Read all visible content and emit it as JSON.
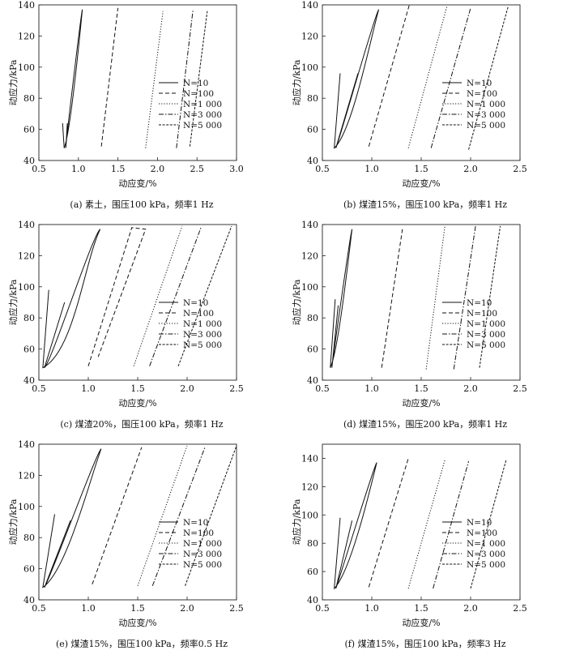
{
  "chart_data": [
    {
      "type": "line",
      "caption": "(a) 素土，围压100 kPa，频率1 Hz",
      "xlabel": "动应变/%",
      "ylabel": "动应力/kPa",
      "xlim": [
        0.5,
        3.0
      ],
      "ylim": [
        40,
        140
      ],
      "xticks": [
        0.5,
        1.0,
        1.5,
        2.0,
        2.5,
        3.0
      ],
      "xtick_labels": [
        "0.5",
        "1.0",
        "1.5",
        "2.0",
        "2.5",
        "3.0"
      ],
      "yticks": [
        40,
        60,
        80,
        100,
        120,
        140
      ],
      "ytick_labels": [
        "40",
        "60",
        "80",
        "100",
        "120",
        "140"
      ],
      "legend_position": "center-right",
      "series": [
        {
          "name": "N=10",
          "style": "solid",
          "hysteresis": {
            "s_min": 0.82,
            "s_max": 1.05,
            "bulge": 0.04,
            "start": [
              0.8,
              64
            ],
            "end": [
              0.86,
              64
            ]
          }
        },
        {
          "name": "N=100",
          "style": "dashed",
          "points": [
            [
              1.29,
              49
            ],
            [
              1.5,
              138
            ]
          ]
        },
        {
          "name": "N=1 000",
          "style": "dotted",
          "points": [
            [
              1.85,
              48
            ],
            [
              2.07,
              136
            ]
          ]
        },
        {
          "name": "N=3 000",
          "style": "dashdot",
          "points": [
            [
              2.24,
              48
            ],
            [
              2.45,
              137
            ]
          ]
        },
        {
          "name": "N=5 000",
          "style": "longdash",
          "points": [
            [
              2.41,
              49
            ],
            [
              2.63,
              136
            ]
          ]
        }
      ]
    },
    {
      "type": "line",
      "caption": "(b) 煤渣15%，围压100 kPa，频率1 Hz",
      "xlabel": "动应变/%",
      "ylabel": "动应力/kPa",
      "xlim": [
        0.5,
        2.5
      ],
      "ylim": [
        40,
        140
      ],
      "xticks": [
        0.5,
        1.0,
        1.5,
        2.0,
        2.5
      ],
      "xtick_labels": [
        "0.5",
        "1.0",
        "1.5",
        "2.0",
        "2.5"
      ],
      "yticks": [
        40,
        60,
        80,
        100,
        120,
        140
      ],
      "ytick_labels": [
        "40",
        "60",
        "80",
        "100",
        "120",
        "140"
      ],
      "legend_position": "center-right",
      "series": [
        {
          "name": "N=10",
          "style": "solid",
          "hysteresis": {
            "s_min": 0.62,
            "s_max": 1.07,
            "bulge": 0.09,
            "start": [
              0.68,
              96
            ],
            "end": [
              0.86,
              96
            ]
          }
        },
        {
          "name": "N=100",
          "style": "dashed",
          "points": [
            [
              0.97,
              49
            ],
            [
              1.38,
              140
            ]
          ]
        },
        {
          "name": "N=1 000",
          "style": "dotted",
          "points": [
            [
              1.37,
              48
            ],
            [
              1.76,
              139
            ]
          ]
        },
        {
          "name": "N=3 000",
          "style": "dashdot",
          "points": [
            [
              1.6,
              48
            ],
            [
              2.0,
              138
            ]
          ]
        },
        {
          "name": "N=5 000",
          "style": "longdash",
          "points": [
            [
              1.98,
              47
            ],
            [
              2.38,
              139
            ]
          ]
        }
      ]
    },
    {
      "type": "line",
      "caption": "(c) 煤渣20%，围压100 kPa，频率1 Hz",
      "xlabel": "动应变/%",
      "ylabel": "动应力/kPa",
      "xlim": [
        0.5,
        2.5
      ],
      "ylim": [
        40,
        140
      ],
      "xticks": [
        0.5,
        1.0,
        1.5,
        2.0,
        2.5
      ],
      "xtick_labels": [
        "0.5",
        "1.0",
        "1.5",
        "2.0",
        "2.5"
      ],
      "yticks": [
        40,
        60,
        80,
        100,
        120,
        140
      ],
      "ytick_labels": [
        "40",
        "60",
        "80",
        "100",
        "120",
        "140"
      ],
      "legend_position": "center-right",
      "series": [
        {
          "name": "N=10",
          "style": "solid",
          "hysteresis": {
            "s_min": 0.54,
            "s_max": 1.12,
            "bulge": 0.16,
            "start": [
              0.6,
              98
            ],
            "end": [
              0.76,
              90
            ]
          }
        },
        {
          "name": "N=100",
          "style": "dashed",
          "points": [
            [
              1.0,
              49
            ],
            [
              1.44,
              138
            ],
            [
              1.58,
              137
            ],
            [
              1.1,
              55
            ]
          ]
        },
        {
          "name": "N=1 000",
          "style": "dotted",
          "points": [
            [
              1.46,
              49
            ],
            [
              1.95,
              139
            ]
          ]
        },
        {
          "name": "N=3 000",
          "style": "dashdot",
          "points": [
            [
              1.62,
              49
            ],
            [
              2.14,
              138
            ]
          ]
        },
        {
          "name": "N=5 000",
          "style": "longdash",
          "points": [
            [
              1.91,
              49
            ],
            [
              2.45,
              139
            ]
          ]
        }
      ]
    },
    {
      "type": "line",
      "caption": "(d) 煤渣15%，围压200 kPa，频率1 Hz",
      "xlabel": "动应变/%",
      "ylabel": "动应力/kPa",
      "xlim": [
        0.5,
        2.5
      ],
      "ylim": [
        40,
        140
      ],
      "xticks": [
        0.5,
        1.0,
        1.5,
        2.0,
        2.5
      ],
      "xtick_labels": [
        "0.5",
        "1.0",
        "1.5",
        "2.0",
        "2.5"
      ],
      "yticks": [
        40,
        60,
        80,
        100,
        120,
        140
      ],
      "ytick_labels": [
        "40",
        "60",
        "80",
        "100",
        "120",
        "140"
      ],
      "legend_position": "center-right",
      "series": [
        {
          "name": "N=10",
          "style": "solid",
          "hysteresis": {
            "s_min": 0.58,
            "s_max": 0.8,
            "bulge": 0.04,
            "start": [
              0.63,
              92
            ],
            "end": [
              0.66,
              88
            ]
          }
        },
        {
          "name": "N=100",
          "style": "dashed",
          "points": [
            [
              1.1,
              48
            ],
            [
              1.31,
              137
            ]
          ]
        },
        {
          "name": "N=1 000",
          "style": "dotted",
          "points": [
            [
              1.55,
              47
            ],
            [
              1.74,
              139
            ]
          ]
        },
        {
          "name": "N=3 000",
          "style": "dashdot",
          "points": [
            [
              1.83,
              47
            ],
            [
              2.05,
              139
            ]
          ]
        },
        {
          "name": "N=5 000",
          "style": "longdash",
          "points": [
            [
              2.09,
              48
            ],
            [
              2.3,
              139
            ]
          ]
        }
      ]
    },
    {
      "type": "line",
      "caption": "(e) 煤渣15%，围压100 kPa，频率0.5 Hz",
      "xlabel": "动应变/%",
      "ylabel": "动应力/kPa",
      "xlim": [
        0.5,
        2.5
      ],
      "ylim": [
        40,
        140
      ],
      "xticks": [
        0.5,
        1.0,
        1.5,
        2.0,
        2.5
      ],
      "xtick_labels": [
        "0.5",
        "1.0",
        "1.5",
        "2.0",
        "2.5"
      ],
      "yticks": [
        40,
        60,
        80,
        100,
        120,
        140
      ],
      "ytick_labels": [
        "40",
        "60",
        "80",
        "100",
        "120",
        "140"
      ],
      "legend_position": "center-right",
      "series": [
        {
          "name": "N=10",
          "style": "solid",
          "hysteresis": {
            "s_min": 0.54,
            "s_max": 1.13,
            "bulge": 0.12,
            "start": [
              0.66,
              95
            ],
            "end": [
              0.82,
              91
            ]
          }
        },
        {
          "name": "N=100",
          "style": "dashed",
          "points": [
            [
              1.04,
              50
            ],
            [
              1.54,
              138
            ]
          ]
        },
        {
          "name": "N=1 000",
          "style": "dotted",
          "points": [
            [
              1.5,
              49
            ],
            [
              2.0,
              139
            ]
          ]
        },
        {
          "name": "N=3 000",
          "style": "dashdot",
          "points": [
            [
              1.65,
              49
            ],
            [
              2.18,
              138
            ]
          ]
        },
        {
          "name": "N=5 000",
          "style": "longdash",
          "points": [
            [
              1.98,
              49
            ],
            [
              2.5,
              139
            ]
          ]
        }
      ]
    },
    {
      "type": "line",
      "caption": "(f) 煤渣15%，围压100 kPa，频率3 Hz",
      "xlabel": "动应变/%",
      "ylabel": "动应力/kPa",
      "xlim": [
        0.5,
        2.5
      ],
      "ylim": [
        40,
        150
      ],
      "xticks": [
        0.5,
        1.0,
        1.5,
        2.0,
        2.5
      ],
      "xtick_labels": [
        "0.5",
        "1.0",
        "1.5",
        "2.0",
        "2.5"
      ],
      "yticks": [
        40,
        60,
        80,
        100,
        120,
        140
      ],
      "ytick_labels": [
        "40",
        "60",
        "80",
        "100",
        "120",
        "140"
      ],
      "legend_position": "center-right",
      "series": [
        {
          "name": "N=10",
          "style": "solid",
          "hysteresis": {
            "s_min": 0.62,
            "s_max": 1.05,
            "bulge": 0.08,
            "start": [
              0.68,
              98
            ],
            "end": [
              0.8,
              96
            ]
          }
        },
        {
          "name": "N=100",
          "style": "dashed",
          "points": [
            [
              0.97,
              49
            ],
            [
              1.37,
              140
            ]
          ]
        },
        {
          "name": "N=1 000",
          "style": "dotted",
          "points": [
            [
              1.37,
              48
            ],
            [
              1.74,
              139
            ]
          ]
        },
        {
          "name": "N=3 000",
          "style": "dashdot",
          "points": [
            [
              1.62,
              48
            ],
            [
              1.98,
              138
            ]
          ]
        },
        {
          "name": "N=5 000",
          "style": "longdash",
          "points": [
            [
              2.0,
              48
            ],
            [
              2.36,
              139
            ]
          ]
        }
      ]
    }
  ]
}
